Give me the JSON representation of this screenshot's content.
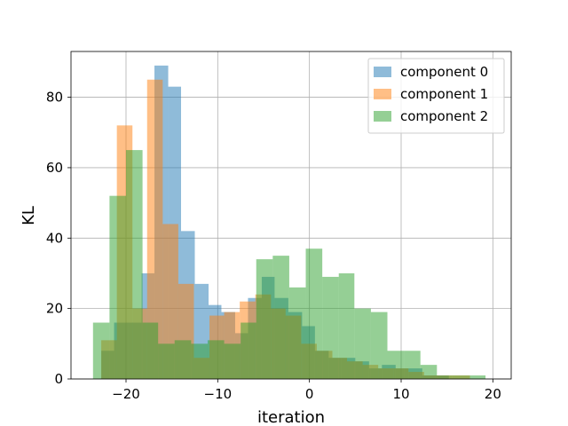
{
  "chart_data": {
    "type": "bar",
    "subtype": "histogram",
    "xlabel": "iteration",
    "ylabel": "KL",
    "xlim": [
      -26,
      22
    ],
    "ylim": [
      0,
      93
    ],
    "xticks": [
      -20,
      -10,
      0,
      10,
      20
    ],
    "xtick_labels": [
      "−20",
      "−10",
      "0",
      "10",
      "20"
    ],
    "yticks": [
      0,
      20,
      40,
      60,
      80
    ],
    "ytick_labels": [
      "0",
      "20",
      "40",
      "60",
      "80"
    ],
    "grid": true,
    "legend_position": "top-right",
    "series": [
      {
        "name": "component 0",
        "color": "#1f77b4",
        "opacity": 0.5,
        "bins": [
          [
            -22.7,
            -21.3,
            8
          ],
          [
            -21.3,
            -19.8,
            16
          ],
          [
            -19.8,
            -18.3,
            16
          ],
          [
            -18.3,
            -16.9,
            30
          ],
          [
            -16.9,
            -15.4,
            89
          ],
          [
            -15.4,
            -14.0,
            83
          ],
          [
            -14.0,
            -12.5,
            42
          ],
          [
            -12.5,
            -11.0,
            27
          ],
          [
            -11.0,
            -9.6,
            21
          ],
          [
            -9.6,
            -8.1,
            19
          ],
          [
            -8.1,
            -6.7,
            13
          ],
          [
            -6.7,
            -5.2,
            23
          ],
          [
            -5.2,
            -3.8,
            29
          ],
          [
            -3.8,
            -2.3,
            23
          ],
          [
            -2.3,
            -0.8,
            19
          ],
          [
            -0.8,
            0.6,
            15
          ],
          [
            0.6,
            2.1,
            8
          ],
          [
            2.1,
            3.5,
            6
          ],
          [
            3.5,
            5.0,
            6
          ],
          [
            5.0,
            6.5,
            5
          ],
          [
            6.5,
            7.9,
            3
          ],
          [
            7.9,
            9.4,
            4
          ],
          [
            9.4,
            10.8,
            3
          ],
          [
            10.8,
            12.3,
            3
          ],
          [
            12.3,
            13.7,
            1
          ],
          [
            13.7,
            15.2,
            1
          ]
        ]
      },
      {
        "name": "component 1",
        "color": "#ff7f0e",
        "opacity": 0.5,
        "bins": [
          [
            -22.7,
            -21.0,
            11
          ],
          [
            -21.0,
            -19.3,
            72
          ],
          [
            -19.3,
            -17.7,
            20
          ],
          [
            -17.7,
            -16.0,
            85
          ],
          [
            -16.0,
            -14.3,
            44
          ],
          [
            -14.3,
            -12.6,
            27
          ],
          [
            -12.6,
            -10.9,
            6
          ],
          [
            -10.9,
            -9.3,
            18
          ],
          [
            -9.3,
            -7.6,
            19
          ],
          [
            -7.6,
            -5.9,
            22
          ],
          [
            -5.9,
            -4.2,
            24
          ],
          [
            -4.2,
            -2.6,
            20
          ],
          [
            -2.6,
            -0.9,
            18
          ],
          [
            -0.9,
            0.8,
            10
          ],
          [
            0.8,
            2.5,
            8
          ],
          [
            2.5,
            4.1,
            6
          ],
          [
            4.1,
            5.8,
            5
          ],
          [
            5.8,
            7.5,
            4
          ],
          [
            7.5,
            9.2,
            3
          ],
          [
            9.2,
            10.8,
            3
          ],
          [
            10.8,
            12.5,
            2
          ],
          [
            12.5,
            14.2,
            1
          ],
          [
            14.2,
            15.9,
            1
          ],
          [
            15.9,
            17.5,
            1
          ]
        ]
      },
      {
        "name": "component 2",
        "color": "#2ca02c",
        "opacity": 0.5,
        "bins": [
          [
            -23.6,
            -21.8,
            16
          ],
          [
            -21.8,
            -20.0,
            52
          ],
          [
            -20.0,
            -18.2,
            65
          ],
          [
            -18.2,
            -16.5,
            16
          ],
          [
            -16.5,
            -14.7,
            10
          ],
          [
            -14.7,
            -12.9,
            11
          ],
          [
            -12.9,
            -11.1,
            10
          ],
          [
            -11.1,
            -9.3,
            11
          ],
          [
            -9.3,
            -7.5,
            10
          ],
          [
            -7.5,
            -5.8,
            16
          ],
          [
            -5.8,
            -4.0,
            34
          ],
          [
            -4.0,
            -2.2,
            35
          ],
          [
            -2.2,
            -0.4,
            26
          ],
          [
            -0.4,
            1.4,
            37
          ],
          [
            1.4,
            3.2,
            29
          ],
          [
            3.2,
            4.9,
            30
          ],
          [
            4.9,
            6.7,
            20
          ],
          [
            6.7,
            8.5,
            19
          ],
          [
            8.5,
            10.3,
            8
          ],
          [
            10.3,
            12.1,
            8
          ],
          [
            12.1,
            13.9,
            4
          ],
          [
            13.9,
            15.6,
            1
          ],
          [
            15.6,
            17.4,
            1
          ],
          [
            17.4,
            19.2,
            1
          ]
        ]
      }
    ]
  }
}
